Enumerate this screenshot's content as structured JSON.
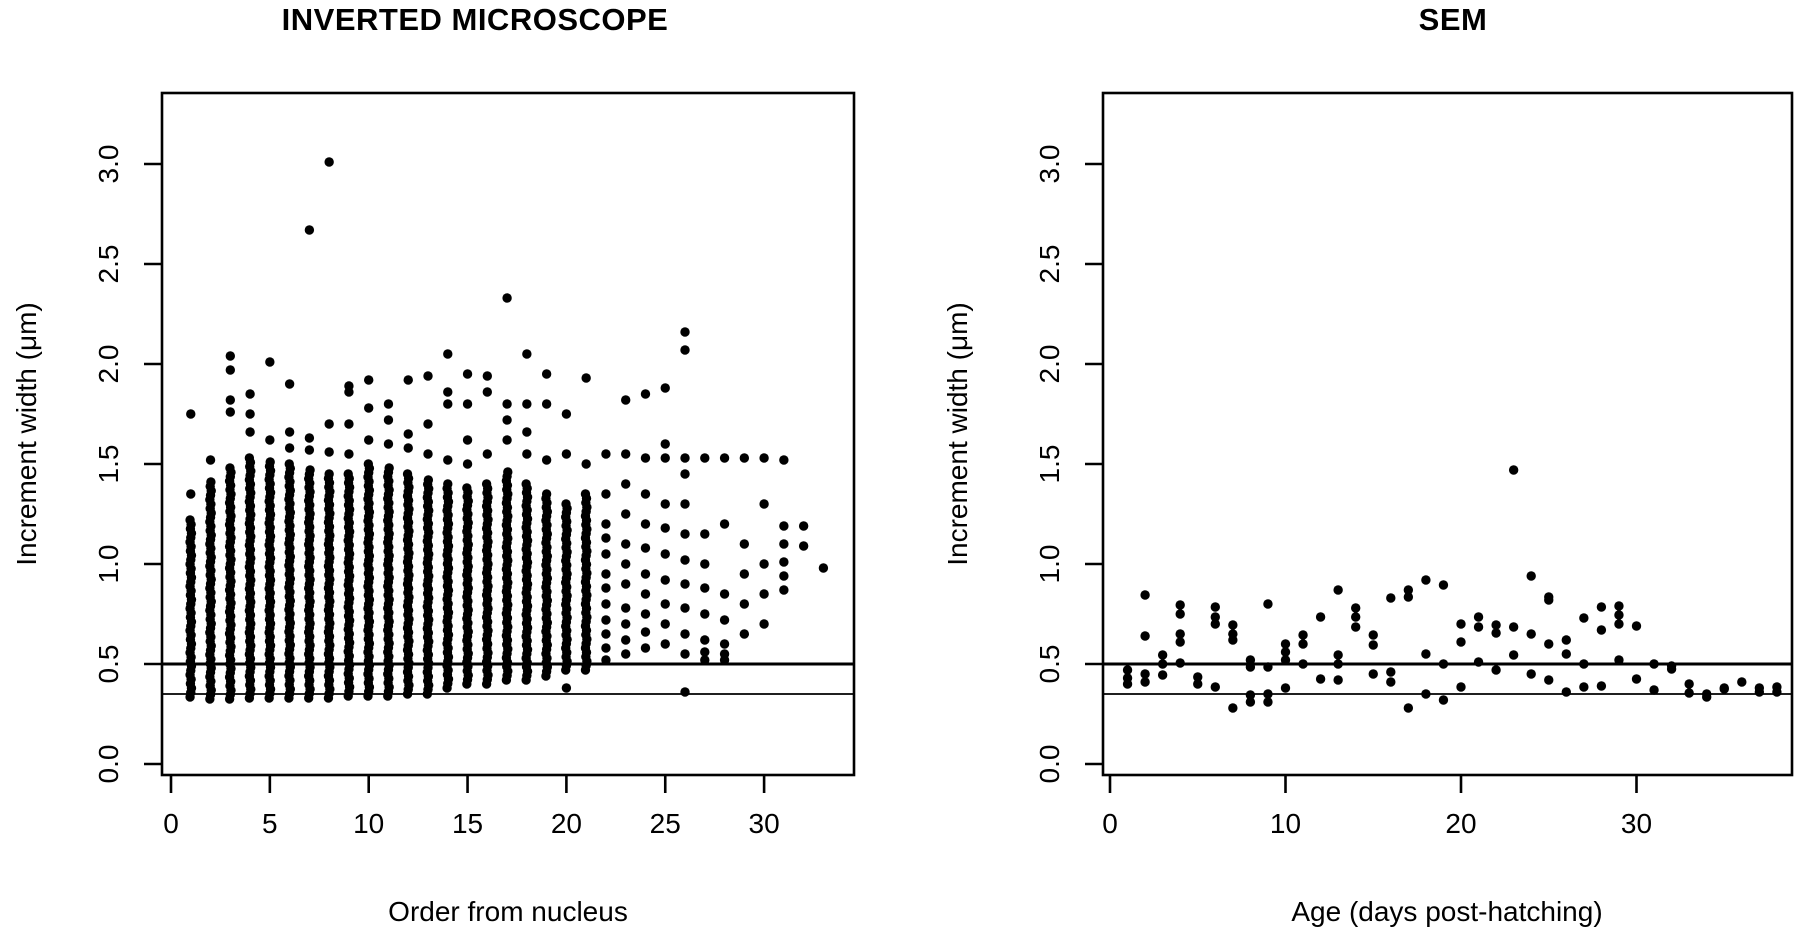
{
  "panels": [
    {
      "id": "inverted-microscope",
      "title": "INVERTED MICROSCOPE",
      "xlabel": "Order from nucleus",
      "ylabel": "Increment width (μm)"
    },
    {
      "id": "sem",
      "title": "SEM",
      "xlabel": "Age (days post-hatching)",
      "ylabel": "Increment width (μm)"
    }
  ],
  "colors": {
    "marker": "#000000",
    "axis": "#000000",
    "background": "#ffffff"
  },
  "chart_data": [
    {
      "type": "scatter",
      "title": "INVERTED MICROSCOPE",
      "xlabel": "Order from nucleus",
      "ylabel": "Increment width (μm)",
      "xticks": [
        0,
        5,
        10,
        15,
        20,
        25,
        30
      ],
      "yticks": [
        0.0,
        0.5,
        1.0,
        1.5,
        2.0,
        2.5,
        3.0
      ],
      "ytick_labels": [
        "0.0",
        "0.5",
        "1.0",
        "1.5",
        "2.0",
        "2.5",
        "3.0"
      ],
      "xlim": [
        -0.5,
        34.5
      ],
      "ylim": [
        -0.05,
        3.35
      ],
      "grid": false,
      "marker": "filled-circle",
      "reference_lines_y": [
        0.5,
        0.35
      ],
      "note_dense": "columns x=1..21 are solid vertical runs of overlapping points given as dense:[ymin,ymax]; points lists extra isolated values",
      "columns": [
        {
          "x": 1,
          "dense": [
            0.335,
            1.22
          ],
          "points": [
            1.35,
            1.75
          ]
        },
        {
          "x": 2,
          "dense": [
            0.325,
            1.41
          ],
          "points": [
            1.52
          ]
        },
        {
          "x": 3,
          "dense": [
            0.325,
            1.48
          ],
          "points": [
            1.76,
            1.82,
            1.97,
            2.04
          ]
        },
        {
          "x": 4,
          "dense": [
            0.33,
            1.53
          ],
          "points": [
            1.66,
            1.75,
            1.85
          ]
        },
        {
          "x": 5,
          "dense": [
            0.33,
            1.51
          ],
          "points": [
            1.62,
            2.01
          ]
        },
        {
          "x": 6,
          "dense": [
            0.33,
            1.5
          ],
          "points": [
            1.58,
            1.66,
            1.9
          ]
        },
        {
          "x": 7,
          "dense": [
            0.33,
            1.47
          ],
          "points": [
            1.57,
            1.63,
            2.67
          ]
        },
        {
          "x": 8,
          "dense": [
            0.33,
            1.45
          ],
          "points": [
            1.56,
            1.7,
            3.01
          ]
        },
        {
          "x": 9,
          "dense": [
            0.34,
            1.45
          ],
          "points": [
            1.55,
            1.7,
            1.86,
            1.89
          ]
        },
        {
          "x": 10,
          "dense": [
            0.34,
            1.5
          ],
          "points": [
            1.62,
            1.78,
            1.92
          ]
        },
        {
          "x": 11,
          "dense": [
            0.34,
            1.48
          ],
          "points": [
            1.6,
            1.72,
            1.8
          ]
        },
        {
          "x": 12,
          "dense": [
            0.35,
            1.45
          ],
          "points": [
            1.58,
            1.65,
            1.92
          ]
        },
        {
          "x": 13,
          "dense": [
            0.35,
            1.42
          ],
          "points": [
            1.55,
            1.7,
            1.94
          ]
        },
        {
          "x": 14,
          "dense": [
            0.38,
            1.4
          ],
          "points": [
            1.52,
            1.8,
            1.86,
            2.05
          ]
        },
        {
          "x": 15,
          "dense": [
            0.4,
            1.38
          ],
          "points": [
            1.5,
            1.62,
            1.8,
            1.95
          ]
        },
        {
          "x": 16,
          "dense": [
            0.4,
            1.4
          ],
          "points": [
            1.55,
            1.86,
            1.94
          ]
        },
        {
          "x": 17,
          "dense": [
            0.42,
            1.46
          ],
          "points": [
            1.62,
            1.72,
            1.8,
            2.33
          ]
        },
        {
          "x": 18,
          "dense": [
            0.42,
            1.4
          ],
          "points": [
            1.55,
            1.66,
            1.8,
            2.05
          ]
        },
        {
          "x": 19,
          "dense": [
            0.44,
            1.35
          ],
          "points": [
            1.52,
            1.8,
            1.95
          ]
        },
        {
          "x": 20,
          "dense": [
            0.47,
            1.3
          ],
          "points": [
            0.38,
            1.55,
            1.75
          ]
        },
        {
          "x": 21,
          "dense": [
            0.47,
            1.35
          ],
          "points": [
            1.5,
            1.93
          ]
        },
        {
          "x": 22,
          "dense": null,
          "points": [
            0.52,
            0.58,
            0.65,
            0.72,
            0.8,
            0.88,
            0.95,
            1.05,
            1.13,
            1.2,
            1.35,
            1.55
          ]
        },
        {
          "x": 23,
          "dense": null,
          "points": [
            0.55,
            0.62,
            0.7,
            0.78,
            0.9,
            1.0,
            1.1,
            1.25,
            1.4,
            1.55,
            1.82
          ]
        },
        {
          "x": 24,
          "dense": null,
          "points": [
            0.58,
            0.66,
            0.75,
            0.85,
            0.95,
            1.08,
            1.2,
            1.35,
            1.53,
            1.85
          ]
        },
        {
          "x": 25,
          "dense": null,
          "points": [
            0.6,
            0.7,
            0.8,
            0.92,
            1.05,
            1.18,
            1.3,
            1.53,
            1.6,
            1.88
          ]
        },
        {
          "x": 26,
          "dense": null,
          "points": [
            0.36,
            0.55,
            0.65,
            0.78,
            0.9,
            1.02,
            1.15,
            1.3,
            1.45,
            1.53,
            2.07,
            2.16
          ]
        },
        {
          "x": 27,
          "dense": null,
          "points": [
            0.52,
            0.56,
            0.62,
            0.75,
            0.88,
            1.0,
            1.15,
            1.53
          ]
        },
        {
          "x": 28,
          "dense": null,
          "points": [
            0.52,
            0.55,
            0.6,
            0.72,
            0.85,
            1.2,
            1.53
          ]
        },
        {
          "x": 29,
          "dense": null,
          "points": [
            0.65,
            0.8,
            0.95,
            1.1,
            1.53
          ]
        },
        {
          "x": 30,
          "dense": null,
          "points": [
            0.7,
            0.85,
            1.0,
            1.3,
            1.53
          ]
        },
        {
          "x": 31,
          "dense": null,
          "points": [
            0.87,
            0.94,
            1.01,
            1.1,
            1.19,
            1.52
          ]
        },
        {
          "x": 32,
          "dense": null,
          "points": [
            1.09,
            1.19
          ]
        },
        {
          "x": 33,
          "dense": null,
          "points": [
            0.98
          ]
        }
      ]
    },
    {
      "type": "scatter",
      "title": "SEM",
      "xlabel": "Age (days post-hatching)",
      "ylabel": "Increment width (μm)",
      "xticks": [
        0,
        10,
        20,
        30
      ],
      "yticks": [
        0.0,
        0.5,
        1.0,
        1.5,
        2.0,
        2.5,
        3.0
      ],
      "ytick_labels": [
        "0.0",
        "0.5",
        "1.0",
        "1.5",
        "2.0",
        "2.5",
        "3.0"
      ],
      "xlim": [
        -0.5,
        39
      ],
      "ylim": [
        -0.05,
        3.35
      ],
      "grid": false,
      "marker": "filled-circle",
      "reference_lines_y": [
        0.5,
        0.35
      ],
      "points": [
        [
          1,
          0.47
        ],
        [
          1,
          0.43
        ],
        [
          1,
          0.4
        ],
        [
          2,
          0.845
        ],
        [
          2,
          0.64
        ],
        [
          2,
          0.45
        ],
        [
          2,
          0.41
        ],
        [
          3,
          0.545
        ],
        [
          3,
          0.5
        ],
        [
          3,
          0.445
        ],
        [
          4,
          0.795
        ],
        [
          4,
          0.75
        ],
        [
          4,
          0.65
        ],
        [
          4,
          0.61
        ],
        [
          4,
          0.505
        ],
        [
          5,
          0.435
        ],
        [
          5,
          0.4
        ],
        [
          6,
          0.785
        ],
        [
          6,
          0.735
        ],
        [
          6,
          0.7
        ],
        [
          6,
          0.385
        ],
        [
          7,
          0.695
        ],
        [
          7,
          0.65
        ],
        [
          7,
          0.62
        ],
        [
          7,
          0.28
        ],
        [
          8,
          0.52
        ],
        [
          8,
          0.485
        ],
        [
          8,
          0.345
        ],
        [
          8,
          0.31
        ],
        [
          9,
          0.8
        ],
        [
          9,
          0.485
        ],
        [
          9,
          0.35
        ],
        [
          9,
          0.31
        ],
        [
          10,
          0.6
        ],
        [
          10,
          0.56
        ],
        [
          10,
          0.52
        ],
        [
          10,
          0.38
        ],
        [
          11,
          0.645
        ],
        [
          11,
          0.6
        ],
        [
          11,
          0.5
        ],
        [
          12,
          0.735
        ],
        [
          12,
          0.425
        ],
        [
          13,
          0.87
        ],
        [
          13,
          0.545
        ],
        [
          13,
          0.5
        ],
        [
          13,
          0.42
        ],
        [
          14,
          0.78
        ],
        [
          14,
          0.735
        ],
        [
          14,
          0.685
        ],
        [
          15,
          0.645
        ],
        [
          15,
          0.595
        ],
        [
          15,
          0.45
        ],
        [
          16,
          0.83
        ],
        [
          16,
          0.46
        ],
        [
          16,
          0.41
        ],
        [
          17,
          0.87
        ],
        [
          17,
          0.835
        ],
        [
          17,
          0.28
        ],
        [
          18,
          0.92
        ],
        [
          18,
          0.55
        ],
        [
          18,
          0.35
        ],
        [
          19,
          0.895
        ],
        [
          19,
          0.5
        ],
        [
          19,
          0.32
        ],
        [
          20,
          0.7
        ],
        [
          20,
          0.61
        ],
        [
          20,
          0.385
        ],
        [
          21,
          0.735
        ],
        [
          21,
          0.685
        ],
        [
          21,
          0.51
        ],
        [
          22,
          0.695
        ],
        [
          22,
          0.655
        ],
        [
          22,
          0.47
        ],
        [
          23,
          1.47
        ],
        [
          23,
          0.685
        ],
        [
          23,
          0.545
        ],
        [
          24,
          0.94
        ],
        [
          24,
          0.65
        ],
        [
          24,
          0.45
        ],
        [
          25,
          0.835
        ],
        [
          25,
          0.82
        ],
        [
          25,
          0.6
        ],
        [
          25,
          0.42
        ],
        [
          26,
          0.62
        ],
        [
          26,
          0.55
        ],
        [
          26,
          0.36
        ],
        [
          27,
          0.73
        ],
        [
          27,
          0.5
        ],
        [
          27,
          0.385
        ],
        [
          28,
          0.785
        ],
        [
          28,
          0.67
        ],
        [
          28,
          0.39
        ],
        [
          29,
          0.79
        ],
        [
          29,
          0.745
        ],
        [
          29,
          0.7
        ],
        [
          29,
          0.52
        ],
        [
          30,
          0.69
        ],
        [
          30,
          0.425
        ],
        [
          31,
          0.5
        ],
        [
          31,
          0.37
        ],
        [
          32,
          0.49
        ],
        [
          32,
          0.475
        ],
        [
          33,
          0.4
        ],
        [
          33,
          0.355
        ],
        [
          34,
          0.35
        ],
        [
          34,
          0.335
        ],
        [
          35,
          0.38
        ],
        [
          35,
          0.375
        ],
        [
          36,
          0.41
        ],
        [
          37,
          0.38
        ],
        [
          37,
          0.36
        ],
        [
          38,
          0.385
        ],
        [
          38,
          0.36
        ]
      ]
    }
  ]
}
